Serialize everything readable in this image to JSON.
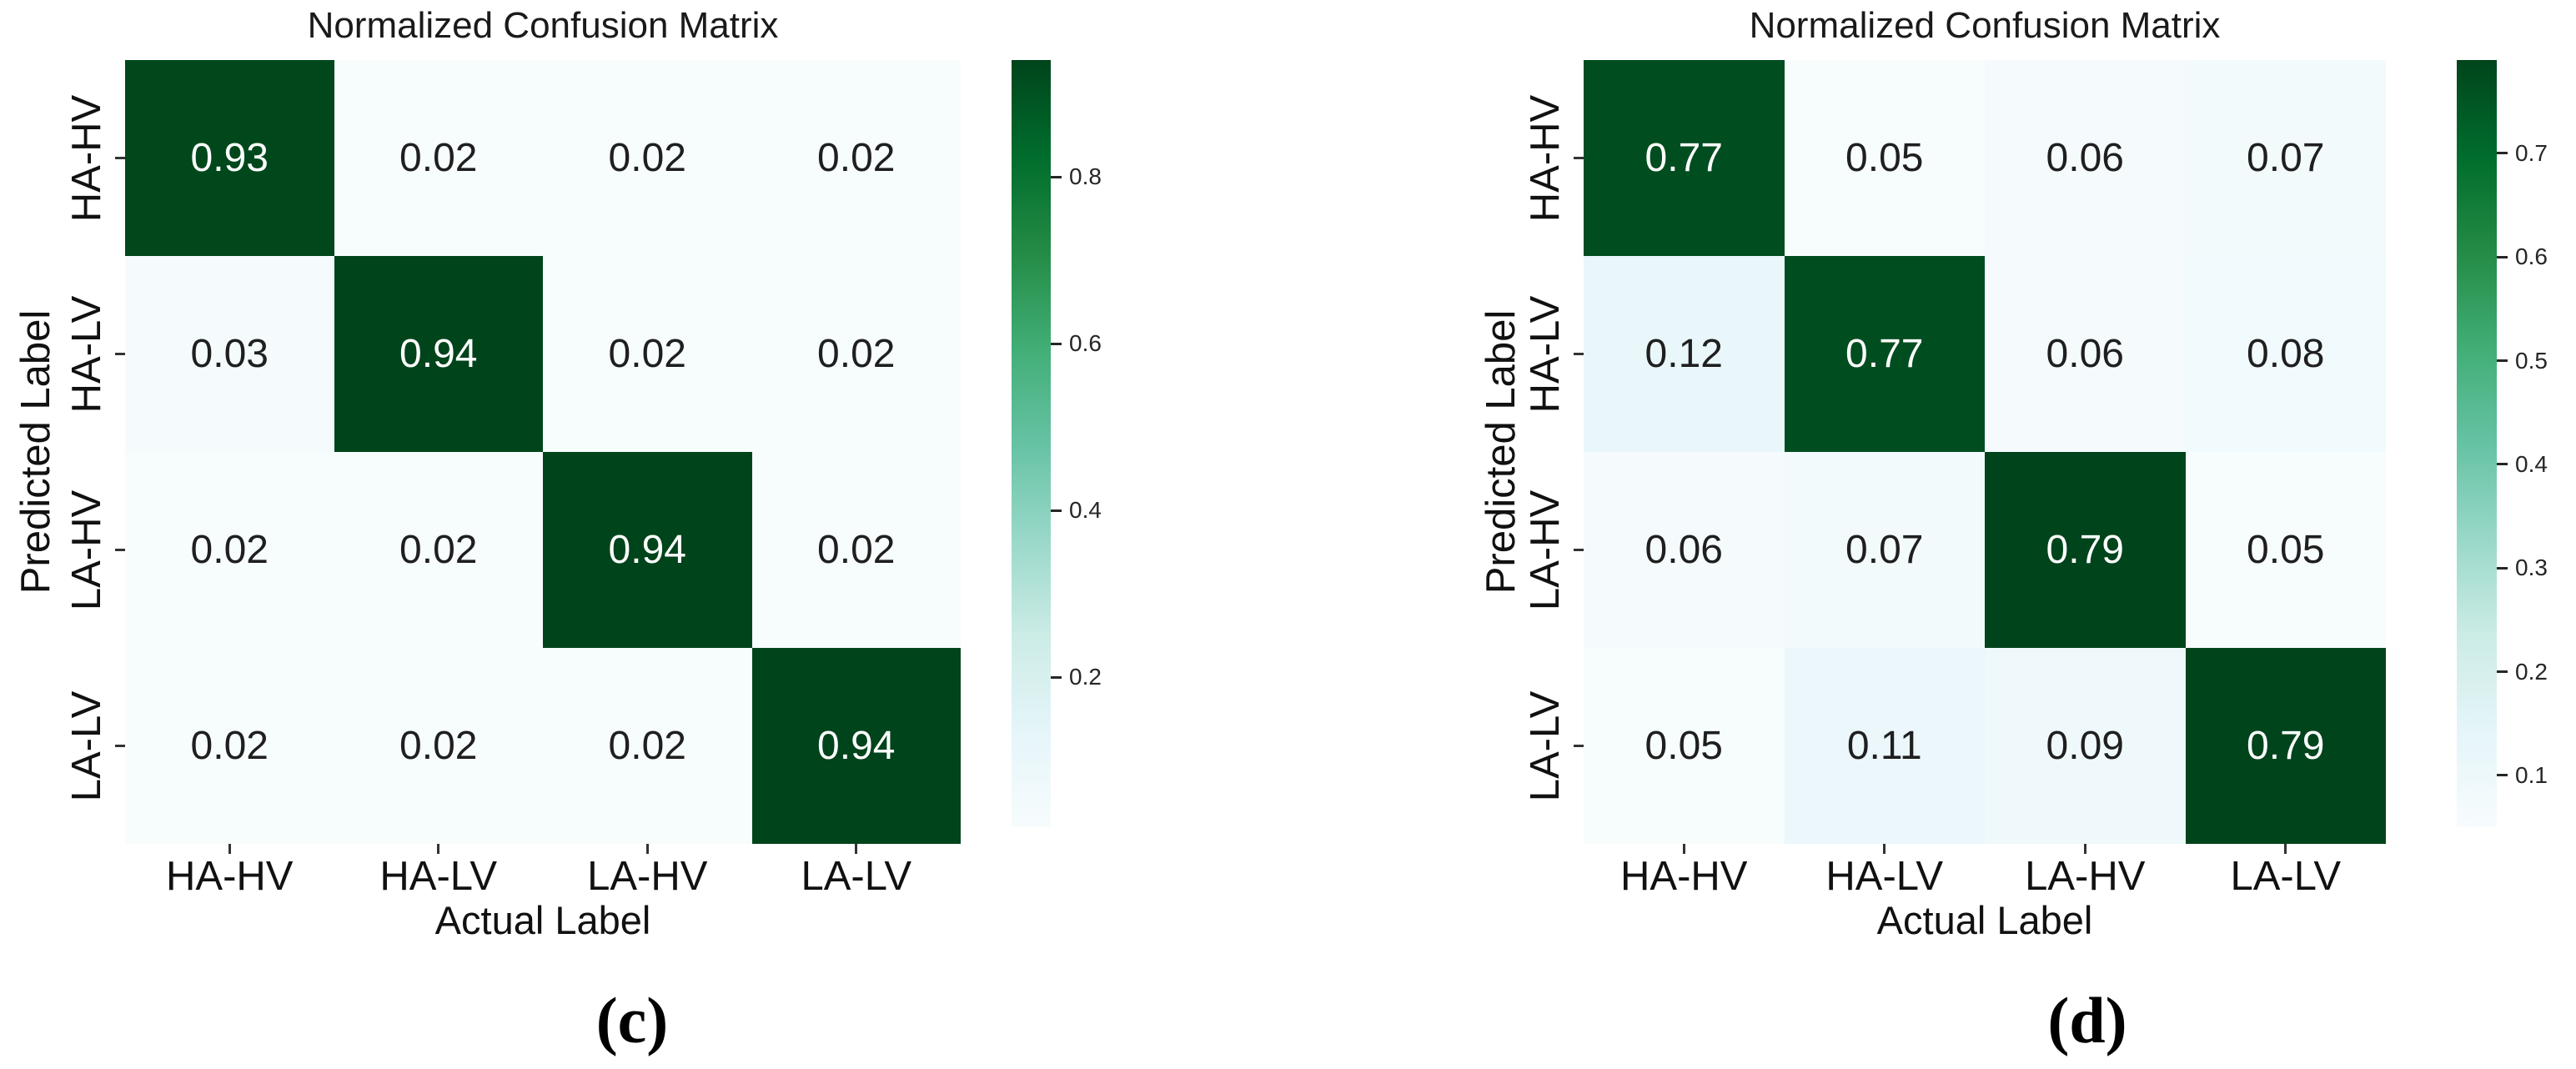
{
  "figure": {
    "background": "#ffffff",
    "colormap": "BuGn",
    "colormap_stops": [
      [
        247,
        252,
        253
      ],
      [
        229,
        245,
        249
      ],
      [
        204,
        236,
        230
      ],
      [
        153,
        216,
        201
      ],
      [
        102,
        194,
        164
      ],
      [
        65,
        174,
        118
      ],
      [
        35,
        139,
        69
      ],
      [
        0,
        109,
        44
      ],
      [
        0,
        68,
        27
      ]
    ],
    "colors": {
      "cmap_max": "#00441b",
      "annot_on_dark": "#ffffff",
      "annot_on_light": "#1f1f1f",
      "axis_text": "#111111"
    }
  },
  "chart_data": [
    {
      "type": "heatmap",
      "title": "Normalized Confusion Matrix",
      "xlabel": "Actual Label",
      "ylabel": "Predicted Label",
      "caption": "(c)",
      "x_categories": [
        "HA-HV",
        "HA-LV",
        "LA-HV",
        "LA-LV"
      ],
      "y_categories": [
        "HA-HV",
        "HA-LV",
        "LA-HV",
        "LA-LV"
      ],
      "values": [
        [
          0.93,
          0.02,
          0.02,
          0.02
        ],
        [
          0.03,
          0.94,
          0.02,
          0.02
        ],
        [
          0.02,
          0.02,
          0.94,
          0.02
        ],
        [
          0.02,
          0.02,
          0.02,
          0.94
        ]
      ],
      "vmin": 0.02,
      "vmax": 0.94,
      "colorbar_ticks": [
        0.8,
        0.6,
        0.4,
        0.2
      ],
      "legend_position": "right-colorbar",
      "grid": false
    },
    {
      "type": "heatmap",
      "title": "Normalized Confusion Matrix",
      "xlabel": "Actual Label",
      "ylabel": "Predicted Label",
      "caption": "(d)",
      "x_categories": [
        "HA-HV",
        "HA-LV",
        "LA-HV",
        "LA-LV"
      ],
      "y_categories": [
        "HA-HV",
        "HA-LV",
        "LA-HV",
        "LA-LV"
      ],
      "values": [
        [
          0.77,
          0.05,
          0.06,
          0.07
        ],
        [
          0.12,
          0.77,
          0.06,
          0.08
        ],
        [
          0.06,
          0.07,
          0.79,
          0.05
        ],
        [
          0.05,
          0.11,
          0.09,
          0.79
        ]
      ],
      "vmin": 0.05,
      "vmax": 0.79,
      "colorbar_ticks": [
        0.7,
        0.6,
        0.5,
        0.4,
        0.3,
        0.2,
        0.1
      ],
      "legend_position": "right-colorbar",
      "grid": false
    }
  ]
}
